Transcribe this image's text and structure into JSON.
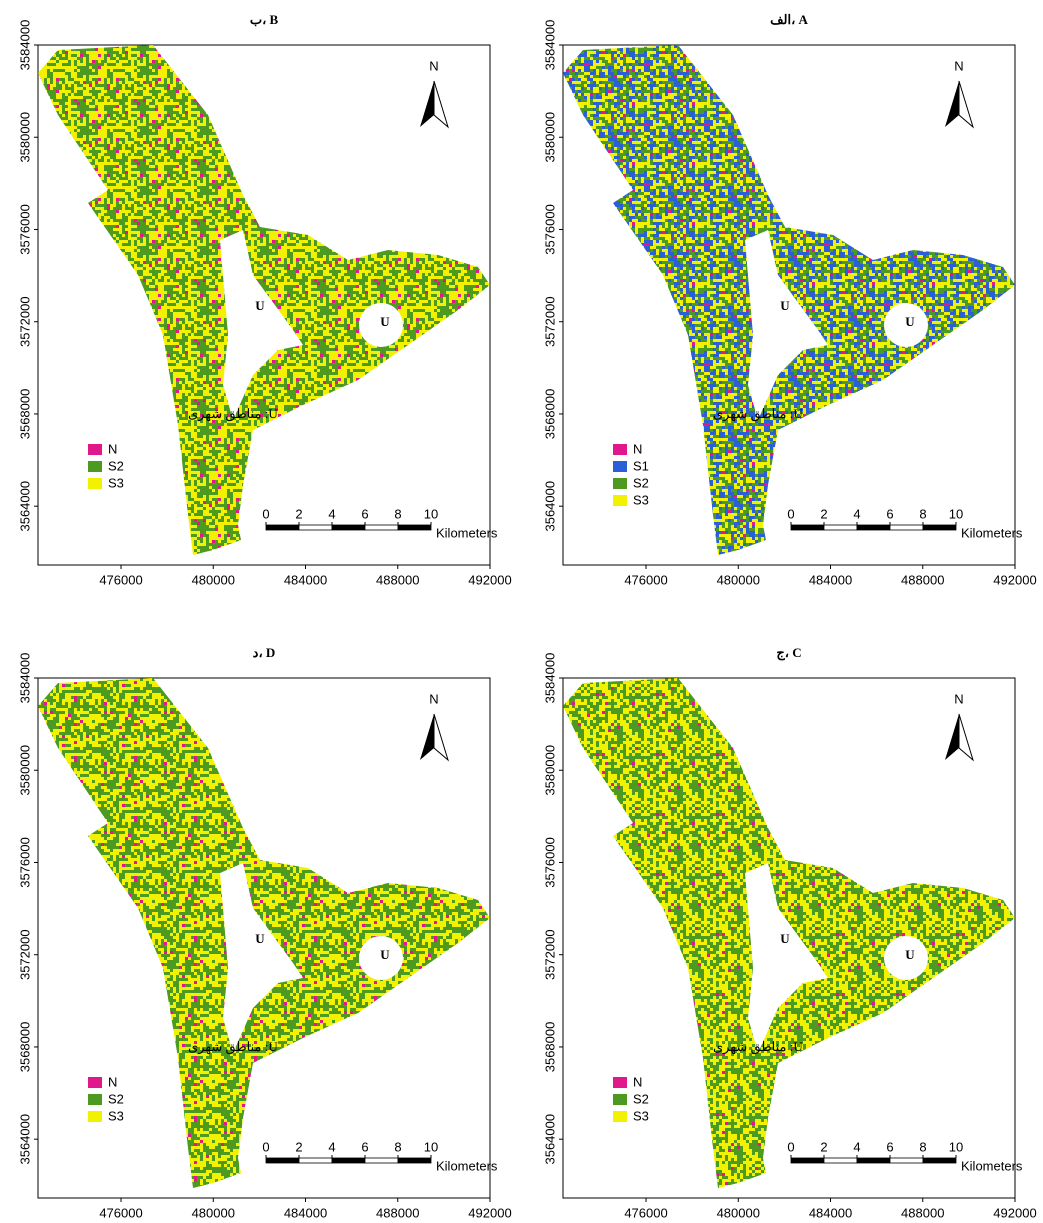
{
  "panels": [
    {
      "title": "الف، A",
      "north": "N",
      "urban_labels": [
        "U",
        "U"
      ],
      "urban_note": "U: مناطق شهری",
      "legend": [
        {
          "name": "N",
          "color": "#e0188c"
        },
        {
          "name": "S1",
          "color": "#2a5fd8"
        },
        {
          "name": "S2",
          "color": "#4c9a1f"
        },
        {
          "name": "S3",
          "color": "#f2f200"
        }
      ],
      "xlim": [
        472400,
        492000
      ],
      "ylim": [
        3561450,
        3584000
      ],
      "xticks": [
        476000,
        480000,
        484000,
        488000,
        492000
      ],
      "yticks": [
        3564000,
        3568000,
        3572000,
        3576000,
        3580000,
        3584000
      ],
      "scale_ticks": [
        0,
        2,
        4,
        6,
        8,
        10
      ],
      "scale_unit": "Kilometers"
    },
    {
      "title": "ب، B",
      "north": "N",
      "urban_labels": [
        "U",
        "U"
      ],
      "urban_note": "U: مناطق شهری",
      "legend": [
        {
          "name": "N",
          "color": "#e0188c"
        },
        {
          "name": "S2",
          "color": "#4c9a1f"
        },
        {
          "name": "S3",
          "color": "#f2f200"
        }
      ],
      "xlim": [
        472400,
        492000
      ],
      "ylim": [
        3561450,
        3584000
      ],
      "xticks": [
        476000,
        480000,
        484000,
        488000,
        492000
      ],
      "yticks": [
        3564000,
        3568000,
        3572000,
        3576000,
        3580000,
        3584000
      ],
      "scale_ticks": [
        0,
        2,
        4,
        6,
        8,
        10
      ],
      "scale_unit": "Kilometers"
    },
    {
      "title": "ج، C",
      "north": "N",
      "urban_labels": [
        "U",
        "U"
      ],
      "urban_note": "U: مناطق شهری",
      "legend": [
        {
          "name": "N",
          "color": "#e0188c"
        },
        {
          "name": "S2",
          "color": "#4c9a1f"
        },
        {
          "name": "S3",
          "color": "#f2f200"
        }
      ],
      "xlim": [
        472400,
        492000
      ],
      "ylim": [
        3561450,
        3584000
      ],
      "xticks": [
        476000,
        480000,
        484000,
        488000,
        492000
      ],
      "yticks": [
        3564000,
        3568000,
        3572000,
        3576000,
        3580000,
        3584000
      ],
      "scale_ticks": [
        0,
        2,
        4,
        6,
        8,
        10
      ],
      "scale_unit": "Kilometers"
    },
    {
      "title": "د، D",
      "north": "N",
      "urban_labels": [
        "U",
        "U"
      ],
      "urban_note": "U: مناطق شهری",
      "legend": [
        {
          "name": "N",
          "color": "#e0188c"
        },
        {
          "name": "S2",
          "color": "#4c9a1f"
        },
        {
          "name": "S3",
          "color": "#f2f200"
        }
      ],
      "xlim": [
        472400,
        492000
      ],
      "ylim": [
        3561450,
        3584000
      ],
      "xticks": [
        476000,
        480000,
        484000,
        488000,
        492000
      ],
      "yticks": [
        3564000,
        3568000,
        3572000,
        3576000,
        3580000,
        3584000
      ],
      "scale_ticks": [
        0,
        2,
        4,
        6,
        8,
        10
      ],
      "scale_unit": "Kilometers"
    }
  ]
}
